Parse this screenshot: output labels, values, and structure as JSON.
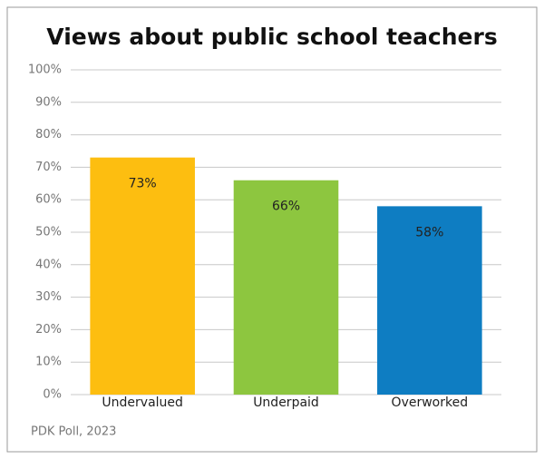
{
  "chart_data": {
    "type": "bar",
    "title": "Views about public school teachers",
    "categories": [
      "Undervalued",
      "Underpaid",
      "Overworked"
    ],
    "values": [
      73,
      66,
      58
    ],
    "value_labels": [
      "73%",
      "66%",
      "58%"
    ],
    "colors": [
      "#fdbe10",
      "#8dc63f",
      "#0e7dc2"
    ],
    "ylim": [
      0,
      100
    ],
    "yticks": [
      {
        "value": 0,
        "label": "0%"
      },
      {
        "value": 10,
        "label": "10%"
      },
      {
        "value": 20,
        "label": "20%"
      },
      {
        "value": 30,
        "label": "30%"
      },
      {
        "value": 40,
        "label": "40%"
      },
      {
        "value": 50,
        "label": "50%"
      },
      {
        "value": 60,
        "label": "60%"
      },
      {
        "value": 70,
        "label": "70%"
      },
      {
        "value": 80,
        "label": "80%"
      },
      {
        "value": 90,
        "label": "90%"
      },
      {
        "value": 100,
        "label": "100%"
      }
    ],
    "grid": true,
    "source": "PDK Poll, 2023"
  }
}
